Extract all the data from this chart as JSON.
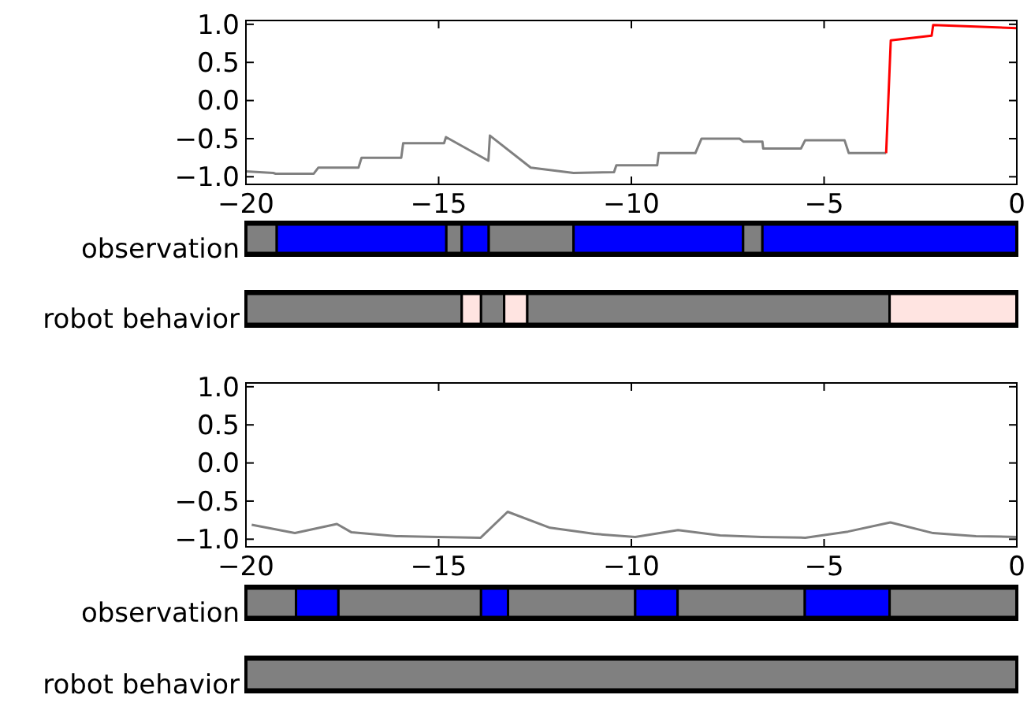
{
  "chart_data": [
    {
      "type": "line",
      "xlim": [
        -20,
        0
      ],
      "ylim": [
        -1.1,
        1.05
      ],
      "xticks": [
        {
          "value": -20,
          "label": "−20"
        },
        {
          "value": -15,
          "label": "−15"
        },
        {
          "value": -10,
          "label": "−10"
        },
        {
          "value": -5,
          "label": "−5"
        },
        0
      ],
      "yticks": [
        {
          "value": 1,
          "label": "1.0"
        },
        {
          "value": 0.5,
          "label": "0.5"
        },
        {
          "value": 0,
          "label": "0.0"
        },
        {
          "value": -0.5,
          "label": "−0.5"
        },
        {
          "value": -1,
          "label": "−1.0"
        }
      ],
      "series": [
        {
          "color": "#808080",
          "x": [
            -20,
            -19.29,
            -19.23,
            -18.24,
            -18.12,
            -17.08,
            -17.0,
            -15.97,
            -15.92,
            -14.86,
            -14.81,
            -13.71,
            -13.67,
            -12.61,
            -11.5,
            -10.45,
            -10.39,
            -9.33,
            -9.29,
            -8.34,
            -8.18,
            -7.19,
            -7.09,
            -6.6,
            -6.58,
            -5.6,
            -5.49,
            -4.47,
            -4.36,
            -3.39
          ],
          "values": [
            -0.93,
            -0.95,
            -0.96,
            -0.96,
            -0.88,
            -0.88,
            -0.75,
            -0.75,
            -0.56,
            -0.56,
            -0.48,
            -0.79,
            -0.46,
            -0.88,
            -0.95,
            -0.94,
            -0.85,
            -0.85,
            -0.69,
            -0.69,
            -0.5,
            -0.5,
            -0.54,
            -0.54,
            -0.63,
            -0.63,
            -0.52,
            -0.52,
            -0.69,
            -0.69
          ]
        },
        {
          "color": "#ff0000",
          "x": [
            -3.39,
            -3.27,
            -2.21,
            -2.17,
            0
          ],
          "values": [
            -0.69,
            0.79,
            0.85,
            0.99,
            0.95
          ]
        }
      ]
    },
    {
      "type": "bar",
      "orientation": "horizontal",
      "categories": [
        "observation"
      ],
      "xlim": [
        -20,
        0
      ],
      "tick_labels": "y",
      "series": [
        {
          "color": "#808080",
          "base": [
            -20
          ],
          "values": [
            0.8
          ]
        },
        {
          "color": "#0000ff",
          "base": [
            -19.2
          ],
          "values": [
            4.4
          ]
        },
        {
          "color": "#808080",
          "base": [
            -14.8
          ],
          "values": [
            0.4
          ]
        },
        {
          "color": "#0000ff",
          "base": [
            -14.4
          ],
          "values": [
            0.7
          ]
        },
        {
          "color": "#808080",
          "base": [
            -13.7
          ],
          "values": [
            2.2
          ]
        },
        {
          "color": "#0000ff",
          "base": [
            -11.5
          ],
          "values": [
            4.4
          ]
        },
        {
          "color": "#808080",
          "base": [
            -7.1
          ],
          "values": [
            0.5
          ]
        },
        {
          "color": "#0000ff",
          "base": [
            -6.6
          ],
          "values": [
            6.6
          ]
        }
      ]
    },
    {
      "type": "bar",
      "orientation": "horizontal",
      "categories": [
        "robot behavior"
      ],
      "xlim": [
        -20,
        0
      ],
      "tick_labels": "y",
      "series": [
        {
          "color": "#808080",
          "base": [
            -20
          ],
          "values": [
            5.6
          ]
        },
        {
          "color": "#ffe4e1",
          "base": [
            -14.4
          ],
          "values": [
            0.5
          ]
        },
        {
          "color": "#808080",
          "base": [
            -13.9
          ],
          "values": [
            0.6
          ]
        },
        {
          "color": "#ffe4e1",
          "base": [
            -13.3
          ],
          "values": [
            0.6
          ]
        },
        {
          "color": "#808080",
          "base": [
            -12.7
          ],
          "values": [
            9.4
          ]
        },
        {
          "color": "#ffe4e1",
          "base": [
            -3.3
          ],
          "values": [
            3.3
          ]
        }
      ]
    },
    {
      "type": "line",
      "xlim": [
        -20,
        0
      ],
      "ylim": [
        -1.1,
        1.05
      ],
      "xticks": [
        {
          "value": -20,
          "label": "−20"
        },
        {
          "value": -15,
          "label": "−15"
        },
        {
          "value": -10,
          "label": "−10"
        },
        {
          "value": -5,
          "label": "−5"
        },
        0
      ],
      "yticks": [
        {
          "value": 1,
          "label": "1.0"
        },
        {
          "value": 0.5,
          "label": "0.5"
        },
        {
          "value": 0,
          "label": "0.0"
        },
        {
          "value": -0.5,
          "label": "−0.5"
        },
        {
          "value": -1,
          "label": "−1.0"
        }
      ],
      "series": [
        {
          "color": "#808080",
          "x": [
            -19.85,
            -18.73,
            -17.64,
            -17.26,
            -16.1,
            -15.02,
            -13.91,
            -13.21,
            -12.11,
            -10.96,
            -9.9,
            -8.79,
            -7.7,
            -6.62,
            -5.49,
            -4.38,
            -3.28,
            -2.17,
            -1.06,
            0
          ],
          "values": [
            -0.81,
            -0.92,
            -0.8,
            -0.91,
            -0.96,
            -0.97,
            -0.98,
            -0.64,
            -0.85,
            -0.93,
            -0.97,
            -0.88,
            -0.95,
            -0.97,
            -0.98,
            -0.9,
            -0.78,
            -0.92,
            -0.96,
            -0.97
          ]
        }
      ]
    },
    {
      "type": "bar",
      "orientation": "horizontal",
      "categories": [
        "observation"
      ],
      "xlim": [
        -20,
        0
      ],
      "tick_labels": "y",
      "series": [
        {
          "color": "#808080",
          "base": [
            -20
          ],
          "values": [
            1.3
          ]
        },
        {
          "color": "#0000ff",
          "base": [
            -18.7
          ],
          "values": [
            1.1
          ]
        },
        {
          "color": "#808080",
          "base": [
            -17.6
          ],
          "values": [
            3.7
          ]
        },
        {
          "color": "#0000ff",
          "base": [
            -13.9
          ],
          "values": [
            0.7
          ]
        },
        {
          "color": "#808080",
          "base": [
            -13.2
          ],
          "values": [
            3.3
          ]
        },
        {
          "color": "#0000ff",
          "base": [
            -9.9
          ],
          "values": [
            1.1
          ]
        },
        {
          "color": "#808080",
          "base": [
            -8.8
          ],
          "values": [
            3.3
          ]
        },
        {
          "color": "#0000ff",
          "base": [
            -5.5
          ],
          "values": [
            2.2
          ]
        },
        {
          "color": "#808080",
          "base": [
            -3.3
          ],
          "values": [
            3.3
          ]
        }
      ]
    },
    {
      "type": "bar",
      "orientation": "horizontal",
      "categories": [
        "robot behavior"
      ],
      "xlim": [
        -20,
        0
      ],
      "tick_labels": "y",
      "series": [
        {
          "color": "#808080",
          "base": [
            -20
          ],
          "values": [
            20
          ]
        }
      ]
    }
  ]
}
